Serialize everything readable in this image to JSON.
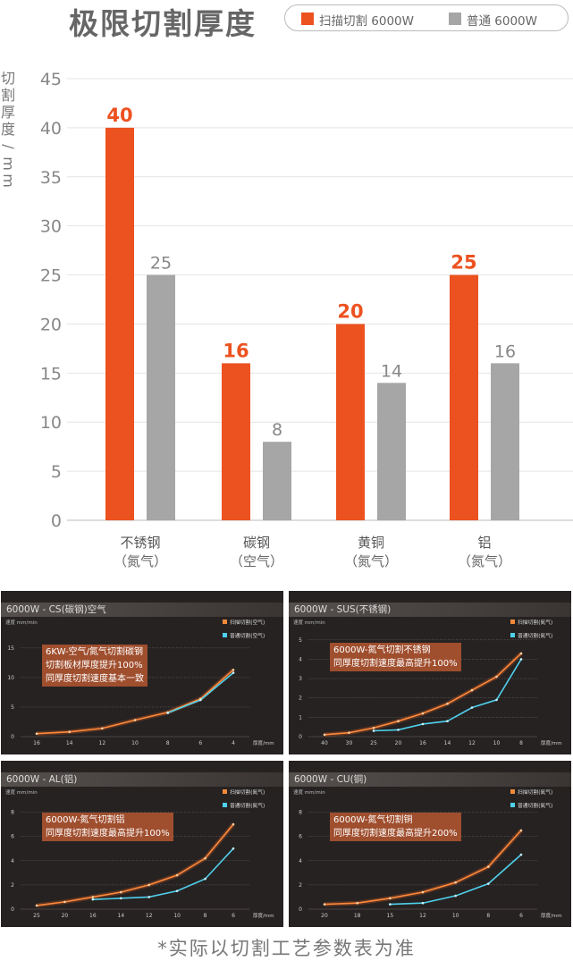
{
  "title": "极限切割厚度",
  "legend": {
    "scan": "扫描切割 6000W",
    "normal": "普通 6000W"
  },
  "colors": {
    "scan": "#ec5220",
    "normal": "#a6a6a6"
  },
  "footnote": "*实际以切割工艺参数表为准",
  "chart_data": {
    "type": "bar",
    "ylabel": "切割厚度/mm",
    "ylim": [
      0,
      45
    ],
    "yticks": [
      0,
      5,
      10,
      15,
      20,
      25,
      30,
      35,
      40,
      45
    ],
    "categories": [
      {
        "name": "不锈钢",
        "gas": "（氮气）"
      },
      {
        "name": "碳钢",
        "gas": "（空气）"
      },
      {
        "name": "黄铜",
        "gas": "（氮气）"
      },
      {
        "name": "铝",
        "gas": "（氮气）"
      }
    ],
    "series": [
      {
        "name": "扫描切割 6000W",
        "values": [
          40,
          16,
          20,
          25
        ]
      },
      {
        "name": "普通 6000W",
        "values": [
          25,
          8,
          14,
          16
        ]
      }
    ],
    "grid": true,
    "legend_position": "top-right"
  },
  "panels": [
    {
      "title": "6000W - CS(碳钢)空气",
      "ylabel": "速度 mm/min",
      "xlabel": "厚度/mm",
      "legend": [
        "扫描切割(空气)",
        "普通切割(空气)"
      ],
      "note": [
        "6KW-空气/氮气切割碳钢",
        "切割板材厚度提升100%",
        "同厚度切割速度基本一致"
      ],
      "yticks": [
        0,
        5,
        10,
        15
      ],
      "ymax": 18,
      "xticks": [
        "16",
        "14",
        "12",
        "10",
        "8",
        "6",
        "4"
      ],
      "scan": [
        [
          0,
          0.5
        ],
        [
          1,
          0.8
        ],
        [
          2,
          1.4
        ],
        [
          3,
          2.8
        ],
        [
          4,
          4.1
        ],
        [
          5,
          6.4
        ],
        [
          6,
          11.3
        ]
      ],
      "normal": [
        [
          4,
          4.0
        ],
        [
          5,
          6.2
        ],
        [
          6,
          10.8
        ]
      ]
    },
    {
      "title": "6000W - SUS(不锈钢)",
      "ylabel": "速度 mm/min",
      "xlabel": "厚度/mm",
      "legend": [
        "扫描切割(氮气)",
        "普通切割(氮气)"
      ],
      "note": [
        "6000W-氮气切割不锈钢",
        "同厚度切割速度最高提升100%"
      ],
      "yticks": [
        0,
        1,
        2,
        3,
        4,
        5
      ],
      "ymax": 5.5,
      "xticks": [
        "40",
        "30",
        "25",
        "20",
        "16",
        "14",
        "12",
        "10",
        "8"
      ],
      "scan": [
        [
          0,
          0.1
        ],
        [
          1,
          0.2
        ],
        [
          2,
          0.45
        ],
        [
          3,
          0.8
        ],
        [
          4,
          1.2
        ],
        [
          5,
          1.7
        ],
        [
          6,
          2.4
        ],
        [
          7,
          3.1
        ],
        [
          8,
          4.3
        ]
      ],
      "normal": [
        [
          2,
          0.3
        ],
        [
          3,
          0.35
        ],
        [
          4,
          0.65
        ],
        [
          5,
          0.8
        ],
        [
          6,
          1.5
        ],
        [
          7,
          1.9
        ],
        [
          8,
          4.0
        ]
      ]
    },
    {
      "title": "6000W - AL(铝)",
      "ylabel": "速度 mm/min",
      "xlabel": "厚度/mm",
      "legend": [
        "扫描切割(氮气)",
        "普通切割(氮气)"
      ],
      "note": [
        "6000W-氮气切割铝",
        "同厚度切割速度最高提升100%"
      ],
      "yticks": [
        0,
        2,
        4,
        6,
        8
      ],
      "ymax": 9,
      "xticks": [
        "25",
        "20",
        "16",
        "14",
        "12",
        "10",
        "8",
        "6"
      ],
      "scan": [
        [
          0,
          0.3
        ],
        [
          1,
          0.6
        ],
        [
          2,
          1.0
        ],
        [
          3,
          1.4
        ],
        [
          4,
          2.0
        ],
        [
          5,
          2.8
        ],
        [
          6,
          4.2
        ],
        [
          7,
          7.0
        ]
      ],
      "normal": [
        [
          2,
          0.8
        ],
        [
          3,
          0.9
        ],
        [
          4,
          1.0
        ],
        [
          5,
          1.5
        ],
        [
          6,
          2.5
        ],
        [
          7,
          5.0
        ]
      ]
    },
    {
      "title": "6000W - CU(铜)",
      "ylabel": "速度 mm/min",
      "xlabel": "厚度/mm",
      "legend": [
        "扫描切割(氮气)",
        "普通切割(氮气)"
      ],
      "note": [
        "6000W-氮气切割铜",
        "同厚度切割速度最高提升200%"
      ],
      "yticks": [
        0,
        2,
        4,
        6,
        8
      ],
      "ymax": 9,
      "xticks": [
        "20",
        "18",
        "15",
        "12",
        "10",
        "8",
        "6"
      ],
      "scan": [
        [
          0,
          0.4
        ],
        [
          1,
          0.5
        ],
        [
          2,
          0.9
        ],
        [
          3,
          1.4
        ],
        [
          4,
          2.2
        ],
        [
          5,
          3.5
        ],
        [
          6,
          6.5
        ]
      ],
      "normal": [
        [
          2,
          0.4
        ],
        [
          3,
          0.5
        ],
        [
          4,
          1.1
        ],
        [
          5,
          2.1
        ],
        [
          6,
          4.5
        ]
      ]
    }
  ]
}
